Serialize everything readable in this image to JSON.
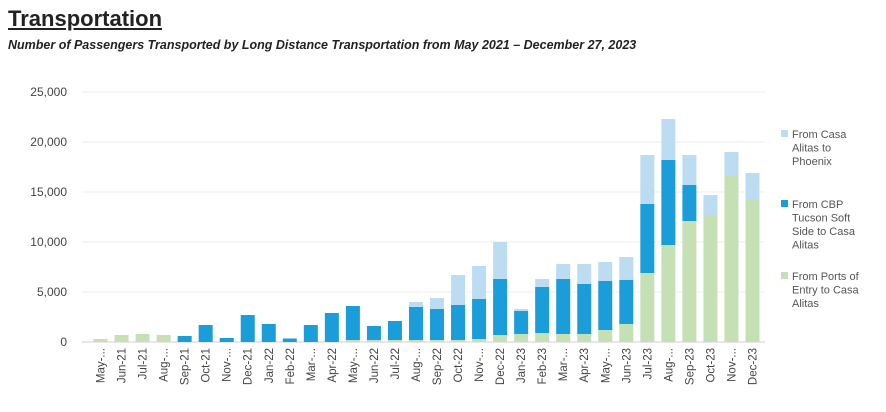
{
  "header": {
    "title": "Transportation",
    "subtitle": "Number of Passengers Transported by Long Distance Transportation from May 2021 – December 27, 2023"
  },
  "chart_data": {
    "type": "bar",
    "stacked": true,
    "title": "Transportation",
    "subtitle": "Number of Passengers Transported by Long Distance Transportation from May 2021 – December 27, 2023",
    "xlabel": "",
    "ylabel": "",
    "ylim": [
      0,
      25000
    ],
    "yticks": [
      "0",
      "5,000",
      "10,000",
      "15,000",
      "20,000",
      "25,000"
    ],
    "ytick_values": [
      0,
      5000,
      10000,
      15000,
      20000,
      25000
    ],
    "grid": true,
    "legend_position": "right",
    "categories": [
      "May-...",
      "Jun-21",
      "Jul-21",
      "Aug-...",
      "Sep-21",
      "Oct-21",
      "Nov-...",
      "Dec-21",
      "Jan-22",
      "Feb-22",
      "Mar-...",
      "Apr-22",
      "May-...",
      "Jun-22",
      "Jul-22",
      "Aug-...",
      "Sep-22",
      "Oct-22",
      "Nov-...",
      "Dec-22",
      "Jan-23",
      "Feb-23",
      "Mar-...",
      "Apr-23",
      "May-...",
      "Jun-23",
      "Jul-23",
      "Aug-...",
      "Sep-23",
      "Oct-23",
      "Nov-...",
      "Dec-23"
    ],
    "series": [
      {
        "name": "From Ports of Entry to Casa Alitas",
        "legend_lines": [
          "From Ports of",
          "Entry to Casa",
          "Alitas"
        ],
        "color": "#c5e0b4",
        "values": [
          300,
          700,
          800,
          700,
          0,
          0,
          0,
          0,
          0,
          0,
          0,
          0,
          200,
          200,
          200,
          200,
          200,
          200,
          300,
          700,
          800,
          900,
          800,
          800,
          1200,
          1800,
          6900,
          9700,
          12100,
          12700,
          16600,
          14200
        ]
      },
      {
        "name": "From CBP Tucson Soft Side to Casa Alitas",
        "legend_lines": [
          "From CBP",
          "Tucson Soft",
          "Side to Casa",
          "Alitas"
        ],
        "color": "#1b9dd9",
        "values": [
          0,
          0,
          0,
          0,
          600,
          1700,
          400,
          2700,
          1800,
          350,
          1700,
          2900,
          3400,
          1400,
          1900,
          3300,
          3100,
          3500,
          4000,
          5600,
          2300,
          4600,
          5500,
          5000,
          4900,
          4400,
          6900,
          8500,
          3600,
          0,
          0,
          0
        ]
      },
      {
        "name": "From Casa Alitas to Phoenix",
        "legend_lines": [
          "From Casa",
          "Alitas to",
          "Phoenix"
        ],
        "color": "#bcdcf2",
        "values": [
          0,
          0,
          0,
          0,
          0,
          0,
          0,
          0,
          0,
          0,
          0,
          0,
          0,
          0,
          0,
          500,
          1100,
          3000,
          3300,
          3700,
          200,
          800,
          1500,
          2000,
          1900,
          2300,
          4900,
          4100,
          3000,
          2000,
          2400,
          2700
        ]
      }
    ]
  }
}
